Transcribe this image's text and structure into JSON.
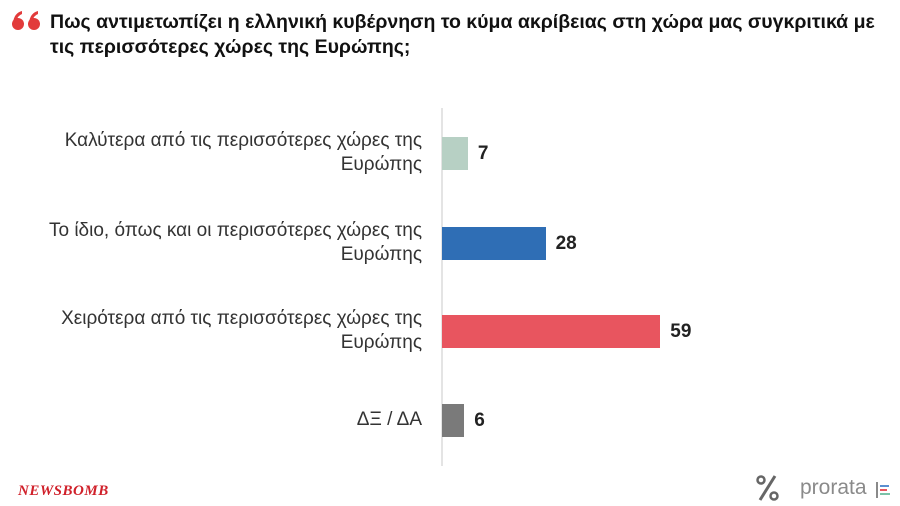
{
  "chart_data": {
    "type": "bar",
    "orientation": "horizontal",
    "title": "Πως αντιμετωπίζει η ελληνική κυβέρνηση το κύμα ακρίβειας στη χώρα μας συγκριτικά με τις περισσότερες χώρες της Ευρώπης;",
    "categories": [
      "Καλύτερα από τις περισσότερες χώρες της Ευρώπης",
      "Το ίδιο, όπως και οι περισσότερες χώρες της Ευρώπης",
      "Χειρότερα από τις περισσότερες χώρες της Ευρώπης",
      "ΔΞ / ΔΑ"
    ],
    "values": [
      7,
      28,
      59,
      6
    ],
    "colors": [
      "#b7d0c4",
      "#2f6eb5",
      "#e8555f",
      "#7a7a7a"
    ]
  },
  "brand": "NEWSBOMB",
  "logo": "prorata"
}
